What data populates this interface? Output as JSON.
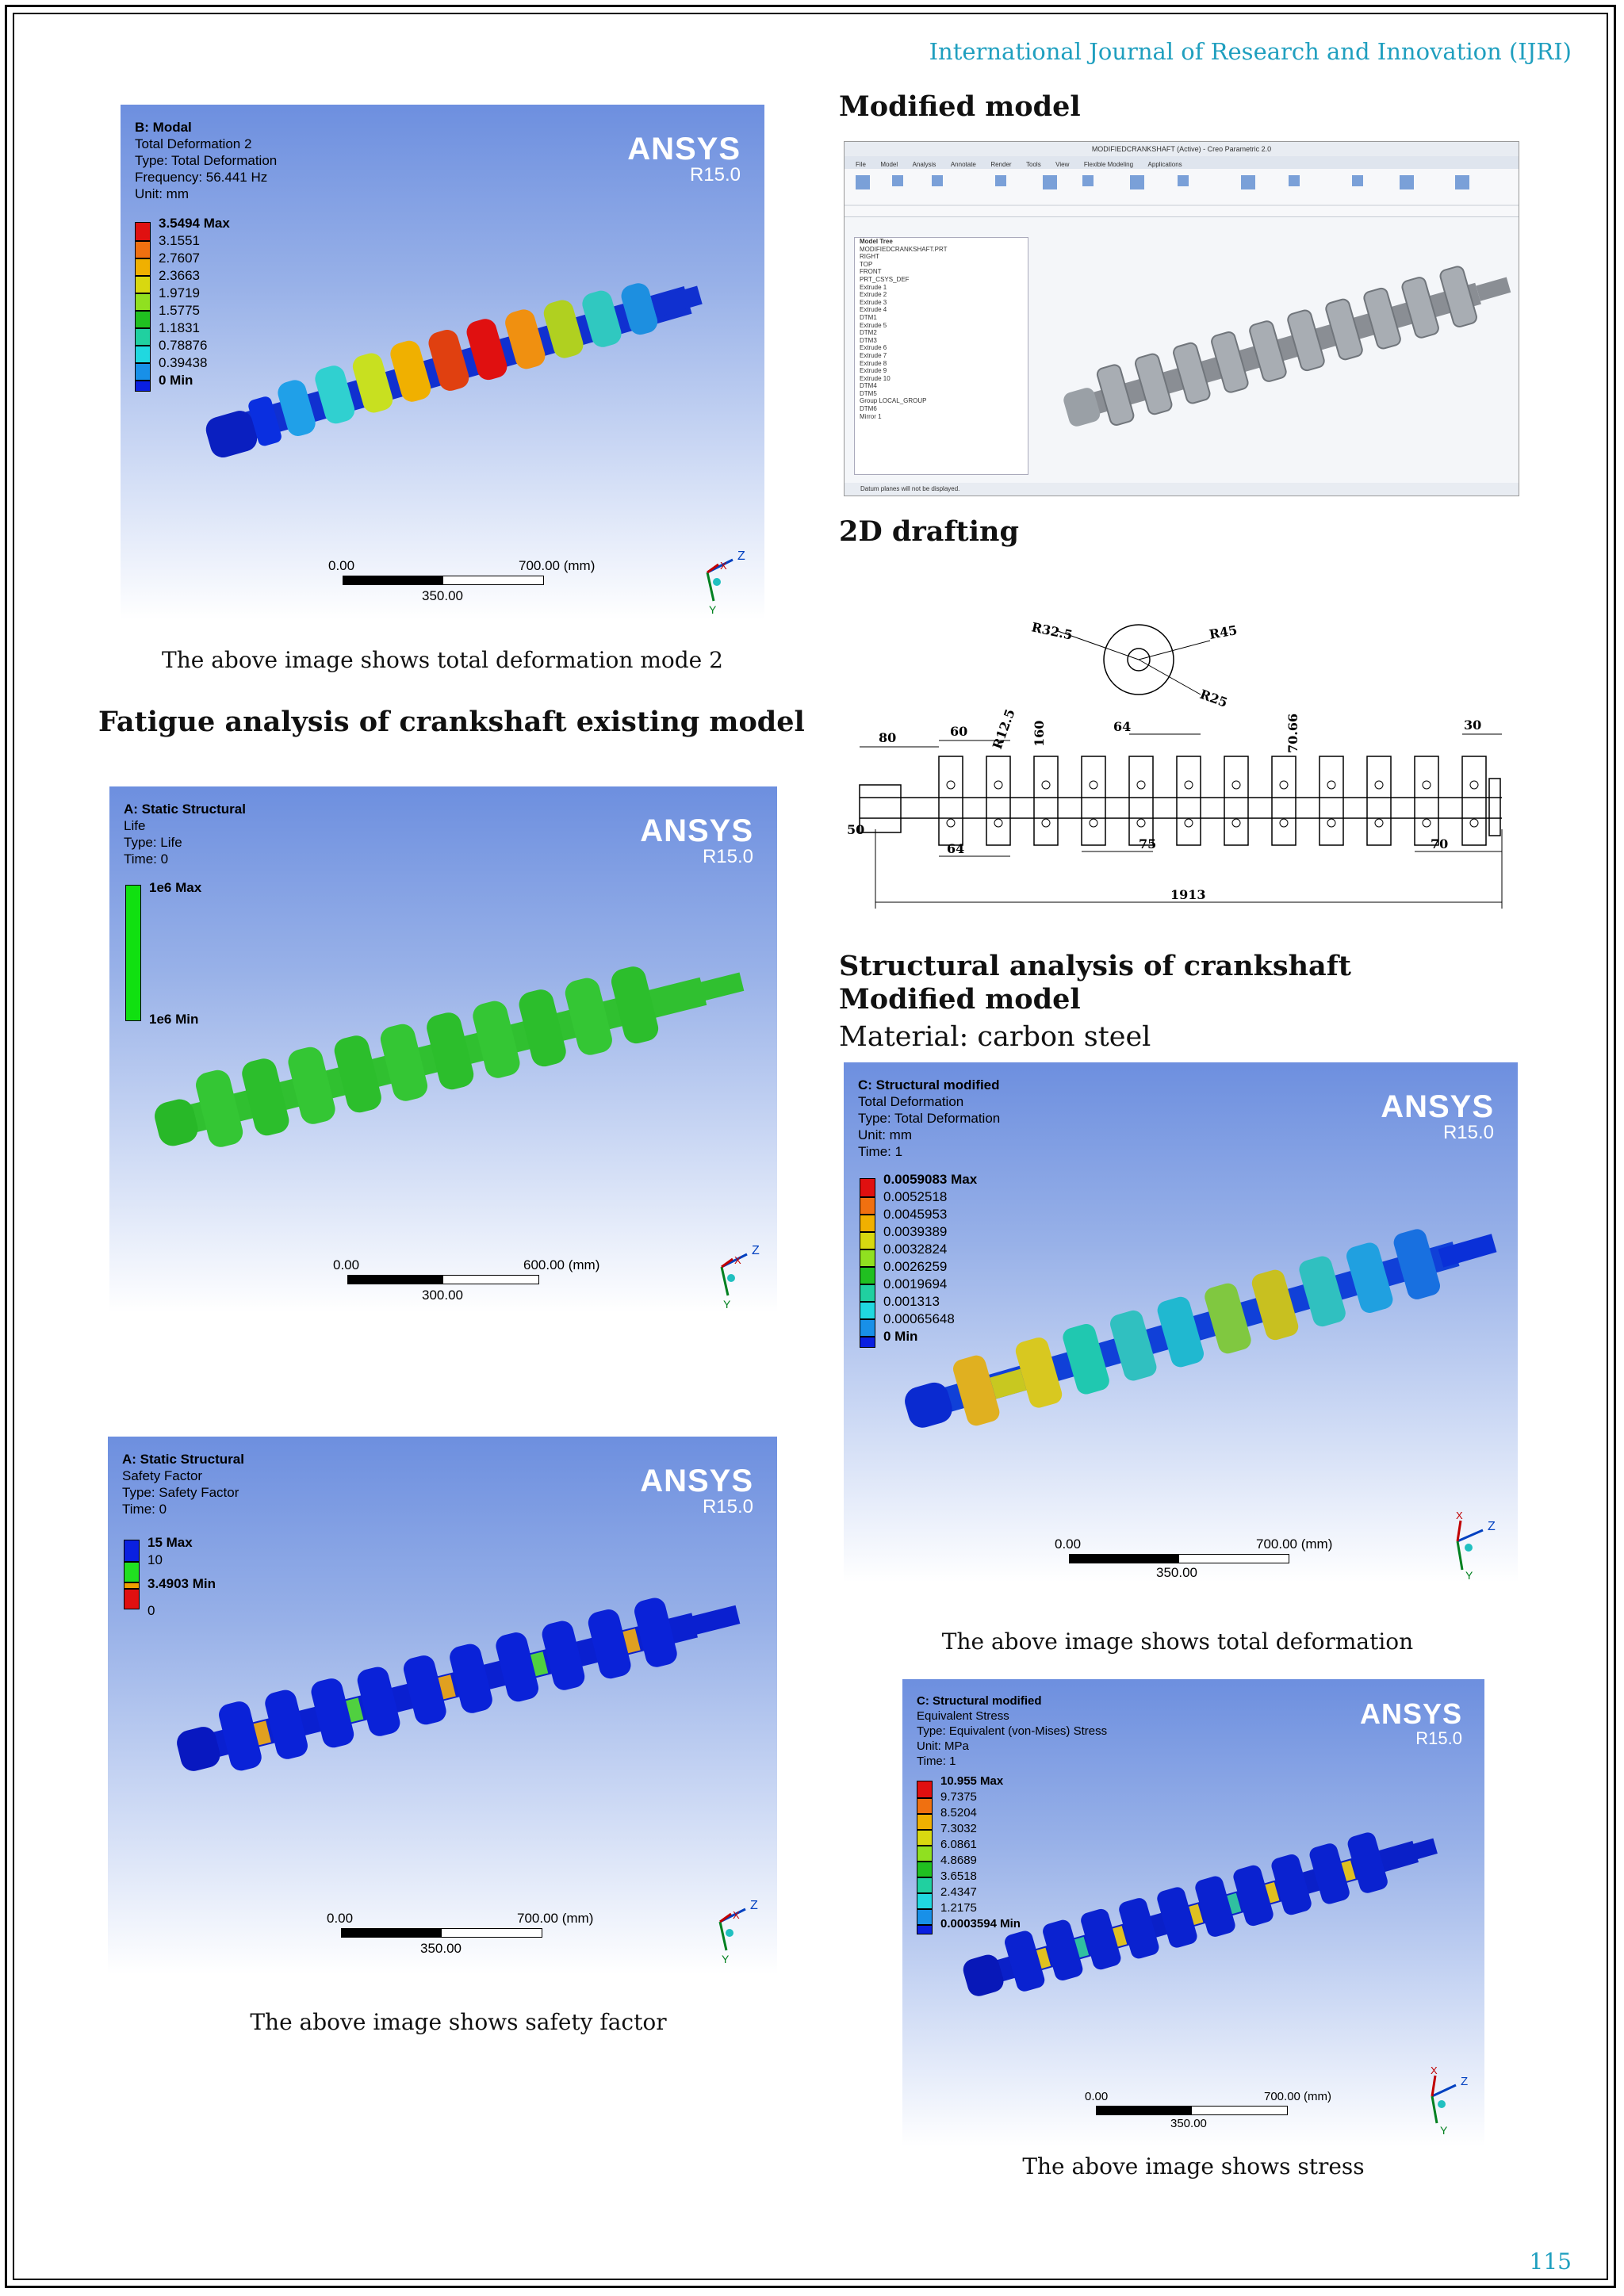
{
  "header": {
    "journal": "International Journal of Research and Innovation (IJRI)"
  },
  "page_number": "115",
  "panels": {
    "modal": {
      "title": "B: Modal",
      "lines": [
        "Total Deformation 2",
        "Type: Total Deformation",
        "Frequency: 56.441 Hz",
        "Unit: mm"
      ],
      "logo": "ANSYS",
      "version": "R15.0",
      "legend": [
        "3.5494 Max",
        "3.1551",
        "2.7607",
        "2.3663",
        "1.9719",
        "1.5775",
        "1.1831",
        "0.78876",
        "0.39438",
        "0 Min"
      ],
      "scale": {
        "start": "0.00",
        "end": "700.00 (mm)",
        "mid": "350.00"
      },
      "axis_z": "Z",
      "axis_x": "X",
      "axis_y": "Y"
    },
    "life": {
      "title": "A: Static Structural",
      "lines": [
        "Life",
        "Type: Life",
        "Time: 0"
      ],
      "logo": "ANSYS",
      "version": "R15.0",
      "legend": [
        "1e6 Max",
        "1e6 Min"
      ],
      "scale": {
        "start": "0.00",
        "end": "600.00 (mm)",
        "mid": "300.00"
      },
      "axis_z": "Z",
      "axis_x": "X",
      "axis_y": "Y"
    },
    "safety": {
      "title": "A: Static Structural",
      "lines": [
        "Safety Factor",
        "Type: Safety Factor",
        "Time: 0"
      ],
      "logo": "ANSYS",
      "version": "R15.0",
      "legend": [
        "15 Max",
        "10",
        "3.4903 Min",
        "0"
      ],
      "scale": {
        "start": "0.00",
        "end": "700.00 (mm)",
        "mid": "350.00"
      },
      "axis_z": "Z",
      "axis_x": "X",
      "axis_y": "Y"
    },
    "deformation": {
      "title": "C: Structural modified",
      "lines": [
        "Total Deformation",
        "Type: Total Deformation",
        "Unit: mm",
        "Time: 1"
      ],
      "logo": "ANSYS",
      "version": "R15.0",
      "legend": [
        "0.0059083 Max",
        "0.0052518",
        "0.0045953",
        "0.0039389",
        "0.0032824",
        "0.0026259",
        "0.0019694",
        "0.001313",
        "0.00065648",
        "0 Min"
      ],
      "scale": {
        "start": "0.00",
        "end": "700.00 (mm)",
        "mid": "350.00"
      },
      "axis_z": "Z",
      "axis_x": "X",
      "axis_y": "Y"
    },
    "stress": {
      "title": "C: Structural modified",
      "lines": [
        "Equivalent Stress",
        "Type: Equivalent (von-Mises) Stress",
        "Unit: MPa",
        "Time: 1"
      ],
      "logo": "ANSYS",
      "version": "R15.0",
      "legend": [
        "10.955 Max",
        "9.7375",
        "8.5204",
        "7.3032",
        "6.0861",
        "4.8689",
        "3.6518",
        "2.4347",
        "1.2175",
        "0.0003594 Min"
      ],
      "scale": {
        "start": "0.00",
        "end": "700.00 (mm)",
        "mid": "350.00"
      },
      "axis_z": "Z",
      "axis_x": "X",
      "axis_y": "Y"
    }
  },
  "text": {
    "caption_modal": "The above image shows total deformation mode 2",
    "heading_fatigue": "Fatigue analysis of crankshaft existing model",
    "caption_safety": "The above image shows safety factor",
    "heading_modified": "Modified model",
    "heading_2d": "2D drafting",
    "heading_structural_1": "Structural analysis of crankshaft",
    "heading_structural_2": "Modified model",
    "material": "Material: carbon steel",
    "caption_deformation": "The above image shows total deformation",
    "caption_stress": "The above image shows stress"
  },
  "cad": {
    "title": "MODIFIEDCRANKSHAFT (Active) - Creo Parametric 2.0",
    "tabs": [
      "File",
      "Model",
      "Analysis",
      "Annotate",
      "Render",
      "Tools",
      "View",
      "Flexible Modeling",
      "Applications"
    ],
    "tree_header": "Model Tree",
    "tree": [
      "MODIFIEDCRANKSHAFT.PRT",
      "RIGHT",
      "TOP",
      "FRONT",
      "PRT_CSYS_DEF",
      "Extrude 1",
      "Extrude 2",
      "Extrude 3",
      "Extrude 4",
      "DTM1",
      "Extrude 5",
      "DTM2",
      "DTM3",
      "Extrude 6",
      "Extrude 7",
      "Extrude 8",
      "Extrude 9",
      "Extrude 10",
      "DTM4",
      "DTM5",
      "Group LOCAL_GROUP",
      "DTM6",
      "Mirror 1"
    ],
    "status": "Datum planes will not be displayed."
  },
  "drafting": {
    "dims": [
      "R32.5",
      "R45",
      "R25",
      "R12.5",
      "80",
      "60",
      "160",
      "64",
      "70.66",
      "30",
      "50",
      "64",
      "75",
      "70",
      "1913"
    ]
  },
  "colors": {
    "journal": "#1f9fbf",
    "ansys_top": "#6d8fdf"
  }
}
